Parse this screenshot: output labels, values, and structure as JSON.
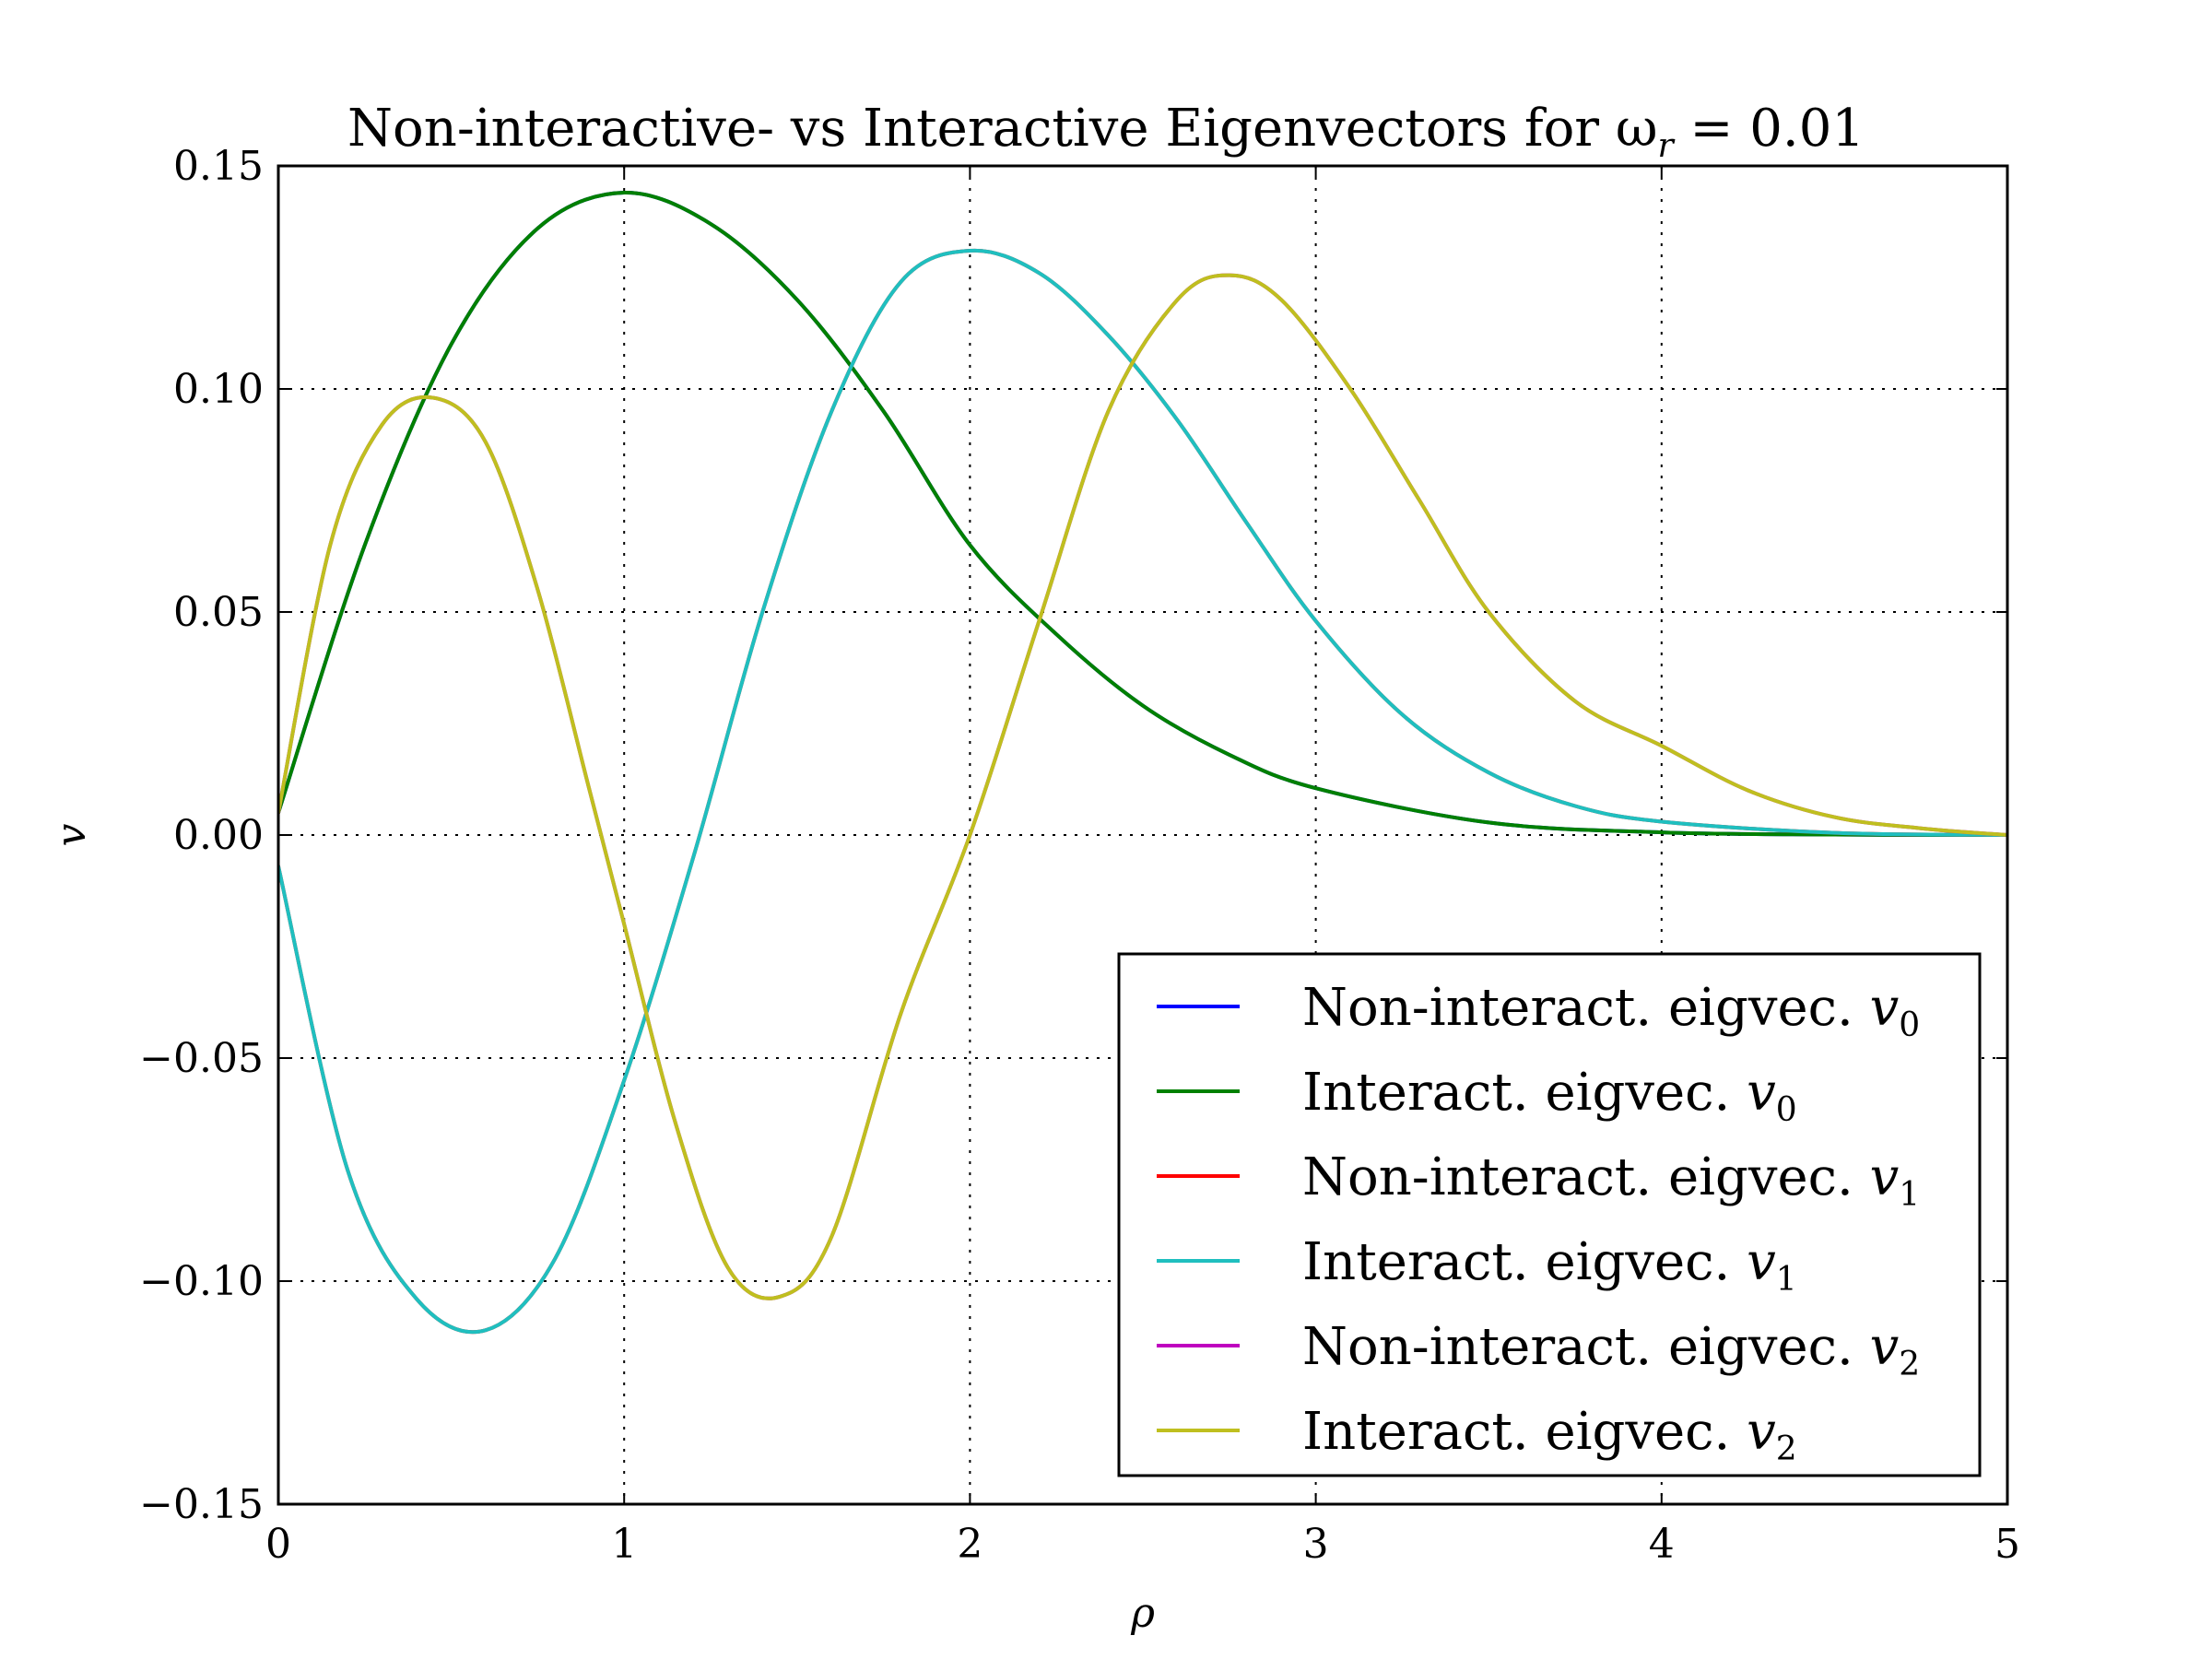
{
  "chart_data": {
    "type": "line",
    "title": "Non-interactive- vs Interactive Eigenvectors for ω",
    "title_subscript": "r",
    "title_suffix": " = 0.01",
    "xlabel": "ρ",
    "ylabel": "v",
    "xlim": [
      0,
      5
    ],
    "ylim": [
      -0.15,
      0.15
    ],
    "x_ticks": [
      "0",
      "1",
      "2",
      "3",
      "4",
      "5"
    ],
    "y_ticks": [
      "−0.15",
      "−0.10",
      "−0.05",
      "0.00",
      "0.05",
      "0.10",
      "0.15"
    ],
    "grid": true,
    "legend_position": "lower-right",
    "series": [
      {
        "name": "Non-interact. eigvec. v0",
        "label_text": "Non-interact. eigvec. ",
        "label_sub": "0",
        "color": "#0000ff",
        "x": [
          0,
          0.25,
          0.5,
          0.75,
          1.0,
          1.25,
          1.5,
          1.75,
          2.0,
          2.25,
          2.5,
          2.75,
          3.0,
          3.5,
          4.0,
          4.5,
          5.0
        ],
        "y": [
          0.005,
          0.065,
          0.11,
          0.136,
          0.144,
          0.137,
          0.12,
          0.095,
          0.065,
          0.045,
          0.029,
          0.018,
          0.0105,
          0.0028,
          0.0006,
          0.0001,
          0.0
        ]
      },
      {
        "name": "Interact. eigvec. v0",
        "label_text": "Interact. eigvec. ",
        "label_sub": "0",
        "color": "#008000",
        "x": [
          0,
          0.25,
          0.5,
          0.75,
          1.0,
          1.25,
          1.5,
          1.75,
          2.0,
          2.25,
          2.5,
          2.75,
          3.0,
          3.5,
          4.0,
          4.5,
          5.0
        ],
        "y": [
          0.005,
          0.065,
          0.11,
          0.136,
          0.144,
          0.137,
          0.12,
          0.095,
          0.065,
          0.045,
          0.029,
          0.018,
          0.0105,
          0.0028,
          0.0006,
          0.0001,
          0.0
        ]
      },
      {
        "name": "Non-interact. eigvec. v1",
        "label_text": "Non-interact. eigvec. ",
        "label_sub": "1",
        "color": "#ff0000",
        "x": [
          0,
          0.2,
          0.4,
          0.6,
          0.8,
          1.0,
          1.2,
          1.4,
          1.6,
          1.8,
          2.0,
          2.2,
          2.4,
          2.6,
          2.8,
          3.0,
          3.25,
          3.5,
          3.75,
          4.0,
          4.5,
          5.0
        ],
        "y": [
          -0.007,
          -0.075,
          -0.104,
          -0.111,
          -0.095,
          -0.055,
          -0.005,
          0.05,
          0.095,
          0.124,
          0.131,
          0.126,
          0.112,
          0.093,
          0.07,
          0.048,
          0.027,
          0.014,
          0.0065,
          0.003,
          0.0005,
          0.0
        ]
      },
      {
        "name": "Interact. eigvec. v1",
        "label_text": "Interact. eigvec. ",
        "label_sub": "1",
        "color": "#1fbfbf",
        "x": [
          0,
          0.2,
          0.4,
          0.6,
          0.8,
          1.0,
          1.2,
          1.4,
          1.6,
          1.8,
          2.0,
          2.2,
          2.4,
          2.6,
          2.8,
          3.0,
          3.25,
          3.5,
          3.75,
          4.0,
          4.5,
          5.0
        ],
        "y": [
          -0.007,
          -0.075,
          -0.104,
          -0.111,
          -0.095,
          -0.055,
          -0.005,
          0.05,
          0.095,
          0.124,
          0.131,
          0.126,
          0.112,
          0.093,
          0.07,
          0.048,
          0.027,
          0.014,
          0.0065,
          0.003,
          0.0005,
          0.0
        ]
      },
      {
        "name": "Non-interact. eigvec. v2",
        "label_text": "Non-interact. eigvec. ",
        "label_sub": "2",
        "color": "#bf00bf",
        "x": [
          0,
          0.15,
          0.3,
          0.45,
          0.6,
          0.75,
          0.9,
          1.0,
          1.15,
          1.3,
          1.45,
          1.6,
          1.8,
          2.0,
          2.2,
          2.4,
          2.6,
          2.75,
          2.9,
          3.1,
          3.3,
          3.5,
          3.75,
          4.0,
          4.25,
          4.5,
          4.75,
          5.0
        ],
        "y": [
          0.005,
          0.065,
          0.092,
          0.098,
          0.088,
          0.055,
          0.01,
          -0.02,
          -0.065,
          -0.097,
          -0.1035,
          -0.09,
          -0.04,
          0.0,
          0.048,
          0.095,
          0.12,
          0.1255,
          0.12,
          0.1,
          0.075,
          0.05,
          0.03,
          0.02,
          0.01,
          0.004,
          0.0015,
          0.0
        ]
      },
      {
        "name": "Interact. eigvec. v2",
        "label_text": "Interact. eigvec. ",
        "label_sub": "2",
        "color": "#bfbf1f",
        "x": [
          0,
          0.15,
          0.3,
          0.45,
          0.6,
          0.75,
          0.9,
          1.0,
          1.15,
          1.3,
          1.45,
          1.6,
          1.8,
          2.0,
          2.2,
          2.4,
          2.6,
          2.75,
          2.9,
          3.1,
          3.3,
          3.5,
          3.75,
          4.0,
          4.25,
          4.5,
          4.75,
          5.0
        ],
        "y": [
          0.005,
          0.065,
          0.092,
          0.098,
          0.088,
          0.055,
          0.01,
          -0.02,
          -0.065,
          -0.097,
          -0.1035,
          -0.09,
          -0.04,
          0.0,
          0.048,
          0.095,
          0.12,
          0.1255,
          0.12,
          0.1,
          0.075,
          0.05,
          0.03,
          0.02,
          0.01,
          0.004,
          0.0015,
          0.0
        ]
      }
    ]
  }
}
